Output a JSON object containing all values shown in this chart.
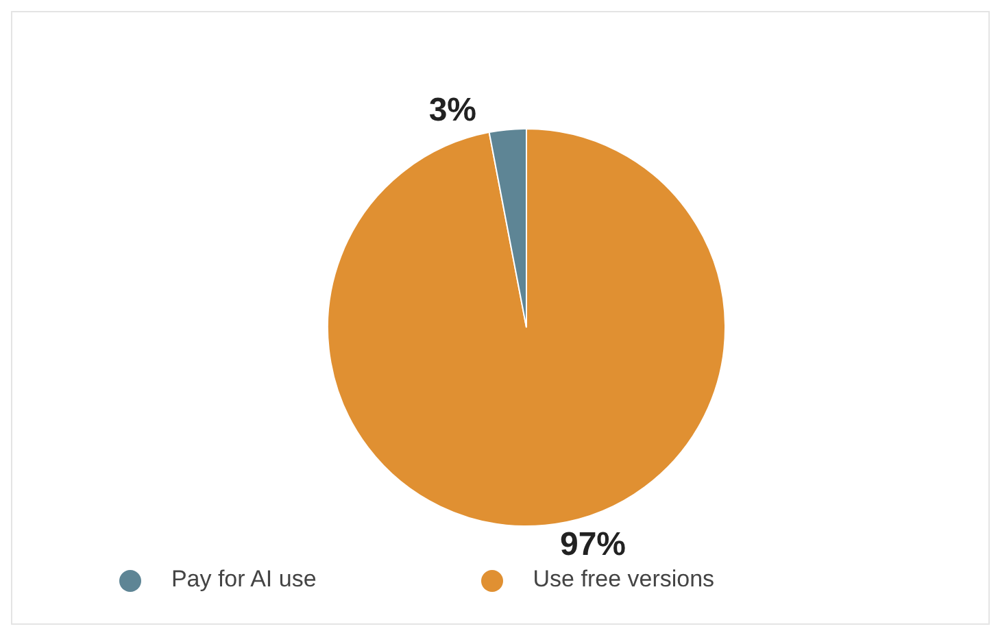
{
  "chart_data": {
    "type": "pie",
    "categories": [
      "Use free versions",
      "Pay for AI use"
    ],
    "values": [
      97,
      3
    ],
    "colors": [
      "#e09032",
      "#5e8595"
    ],
    "value_labels": [
      "97%",
      "3%"
    ],
    "legend": "bottom"
  }
}
